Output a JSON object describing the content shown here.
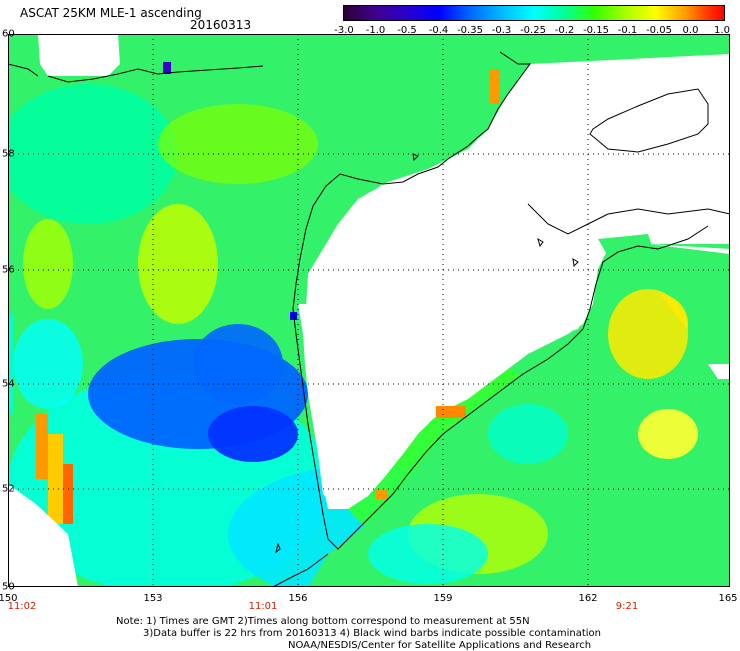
{
  "header": {
    "title": "ASCAT 25KM MLE-1 ascending",
    "date": "20160313"
  },
  "colorbar": {
    "labels": [
      "-3.0",
      "-1.0",
      "-0.5",
      "-0.4",
      "-0.35",
      "-0.3",
      "-0.25",
      "-0.2",
      "-0.15",
      "-0.1",
      "-0.05",
      "0.0",
      "1.0"
    ]
  },
  "map": {
    "x_ticks": [
      "150",
      "153",
      "156",
      "159",
      "162",
      "165"
    ],
    "y_ticks": [
      "60",
      "58",
      "56",
      "54",
      "52",
      "50"
    ],
    "times": [
      "11:02",
      "11:01",
      "9:21"
    ],
    "land_color": "#ffffff",
    "coast_color": "#000000",
    "grid_style": "dotted"
  },
  "footer": {
    "line1": "Note: 1) Times are GMT 2)Times along bottom correspond to measurement at 55N",
    "line2": "3)Data buffer is 22 hrs from 20160313 4) Black wind barbs indicate possible contamination",
    "line3": "NOAA/NESDIS/Center for Satellite Applications and Research"
  }
}
